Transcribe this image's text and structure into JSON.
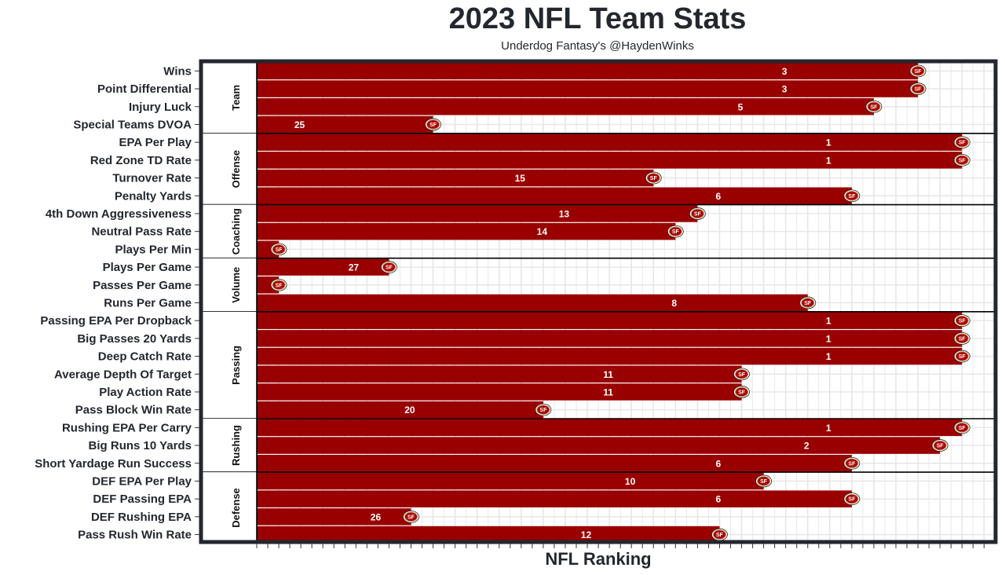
{
  "chart_data": {
    "type": "bar",
    "orientation": "horizontal",
    "title": "2023 NFL Team Stats",
    "subtitle": "Underdog Fantasy's @HaydenWinks",
    "xlabel": "NFL Ranking",
    "ylabel": "",
    "team": "49ers",
    "logo_text": "SF",
    "value_meaning": "rank (1 = best); bar length = 33 - rank",
    "xlim": [
      0,
      33
    ],
    "grid": true,
    "colors": {
      "bar": "#990000",
      "frame": "#23272f",
      "grid": "#e6e6e6",
      "logo_ring": "#b3995d"
    },
    "groups": [
      {
        "name": "Team",
        "rows": [
          {
            "label": "Wins",
            "rank": 3
          },
          {
            "label": "Point Differential",
            "rank": 3
          },
          {
            "label": "Injury Luck",
            "rank": 5
          },
          {
            "label": "Special Teams DVOA",
            "rank": 25
          }
        ]
      },
      {
        "name": "Offense",
        "rows": [
          {
            "label": "EPA Per Play",
            "rank": 1
          },
          {
            "label": "Red Zone TD Rate",
            "rank": 1
          },
          {
            "label": "Turnover Rate",
            "rank": 15
          },
          {
            "label": "Penalty Yards",
            "rank": 6
          }
        ]
      },
      {
        "name": "Coaching",
        "rows": [
          {
            "label": "4th Down Aggressiveness",
            "rank": 13
          },
          {
            "label": "Neutral Pass Rate",
            "rank": 14
          },
          {
            "label": "Plays Per Min",
            "rank": 32
          }
        ]
      },
      {
        "name": "Volume",
        "rows": [
          {
            "label": "Plays Per Game",
            "rank": 27
          },
          {
            "label": "Passes Per Game",
            "rank": 32
          },
          {
            "label": "Runs Per Game",
            "rank": 8
          }
        ]
      },
      {
        "name": "Passing",
        "rows": [
          {
            "label": "Passing EPA Per Dropback",
            "rank": 1
          },
          {
            "label": "Big Passes 20 Yards",
            "rank": 1
          },
          {
            "label": "Deep Catch Rate",
            "rank": 1
          },
          {
            "label": "Average Depth Of Target",
            "rank": 11
          },
          {
            "label": "Play Action Rate",
            "rank": 11
          },
          {
            "label": "Pass Block Win Rate",
            "rank": 20
          }
        ]
      },
      {
        "name": "Rushing",
        "rows": [
          {
            "label": "Rushing EPA Per Carry",
            "rank": 1
          },
          {
            "label": "Big Runs 10 Yards",
            "rank": 2
          },
          {
            "label": "Short Yardage Run Success",
            "rank": 6
          }
        ]
      },
      {
        "name": "Defense",
        "rows": [
          {
            "label": "DEF EPA Per Play",
            "rank": 10
          },
          {
            "label": "DEF Passing EPA",
            "rank": 6
          },
          {
            "label": "DEF Rushing EPA",
            "rank": 26
          },
          {
            "label": "Pass Rush Win Rate",
            "rank": 12
          }
        ]
      }
    ]
  }
}
